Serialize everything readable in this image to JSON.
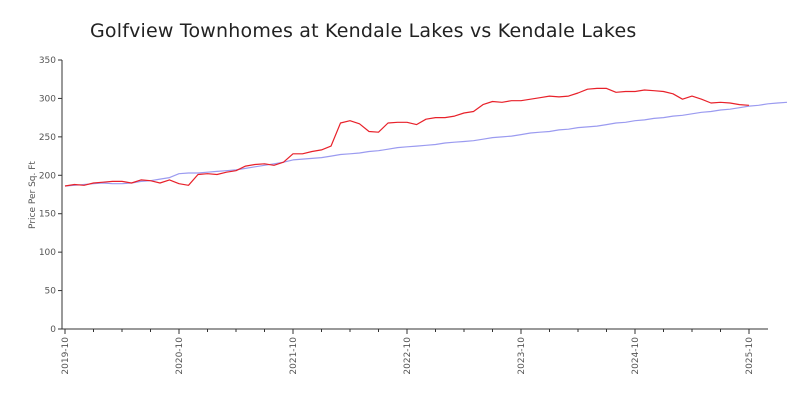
{
  "chart_data": {
    "type": "line",
    "title": "Golfview Townhomes at Kendale Lakes vs Kendale Lakes",
    "ylabel": "Price Per Sq. Ft",
    "xlabel": "",
    "ylim": [
      0,
      350
    ],
    "yticks": [
      0,
      50,
      100,
      150,
      200,
      250,
      300,
      350
    ],
    "xticks": [
      "2019-10",
      "2020-10",
      "2021-10",
      "2022-10",
      "2023-10",
      "2024-10",
      "2025-10"
    ],
    "x_start": "2019-10",
    "grid": false,
    "legend": "none",
    "series": [
      {
        "color": "#e8212a",
        "values": [
          186,
          188,
          187,
          190,
          191,
          192,
          192,
          190,
          194,
          193,
          190,
          194,
          189,
          187,
          201,
          202,
          201,
          204,
          206,
          212,
          214,
          215,
          213,
          217,
          228,
          228,
          231,
          233,
          238,
          268,
          271,
          267,
          257,
          256,
          268,
          269,
          269,
          266,
          273,
          275,
          275,
          277,
          281,
          283,
          292,
          296,
          295,
          297,
          297,
          299,
          301,
          303,
          302,
          303,
          307,
          312,
          313,
          313,
          308,
          309,
          309,
          311,
          310,
          309,
          306,
          299,
          303,
          299,
          294,
          295,
          294,
          292,
          291
        ]
      },
      {
        "color": "#9b9bf0",
        "values": [
          186,
          187,
          188,
          189,
          190,
          189,
          189,
          190,
          192,
          193,
          195,
          197,
          202,
          203,
          203,
          204,
          205,
          206,
          207,
          209,
          211,
          213,
          215,
          217,
          220,
          221,
          222,
          223,
          225,
          227,
          228,
          229,
          231,
          232,
          234,
          236,
          237,
          238,
          239,
          240,
          242,
          243,
          244,
          245,
          247,
          249,
          250,
          251,
          253,
          255,
          256,
          257,
          259,
          260,
          262,
          263,
          264,
          266,
          268,
          269,
          271,
          272,
          274,
          275,
          277,
          278,
          280,
          282,
          283,
          285,
          286,
          288,
          290,
          291,
          293,
          294,
          295
        ]
      }
    ]
  }
}
